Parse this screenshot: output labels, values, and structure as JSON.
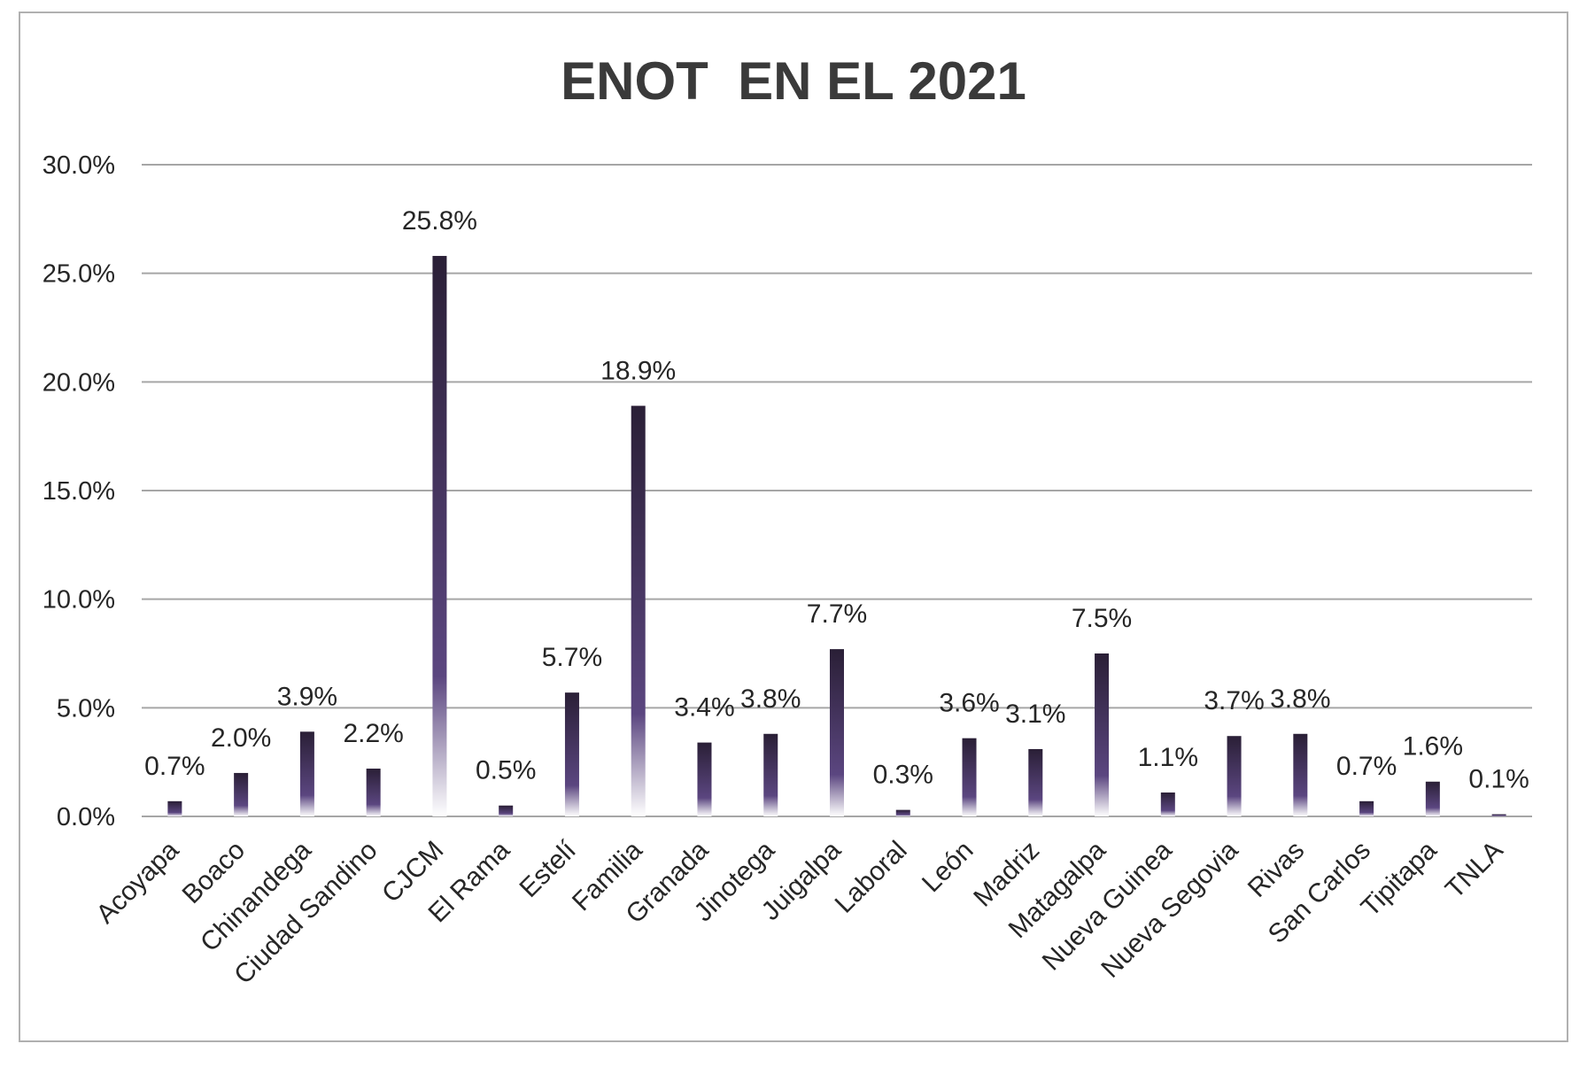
{
  "chart_data": {
    "type": "bar",
    "title": "ENOT  EN EL 2021",
    "xlabel": "",
    "ylabel": "",
    "ylim": [
      0,
      30
    ],
    "yticks": [
      "0.0%",
      "5.0%",
      "10.0%",
      "15.0%",
      "20.0%",
      "25.0%",
      "30.0%"
    ],
    "ytick_values": [
      0,
      5,
      10,
      15,
      20,
      25,
      30
    ],
    "grid": true,
    "legend": "none",
    "categories": [
      "Acoyapa",
      "Boaco",
      "Chinandega",
      "Ciudad Sandino",
      "CJCM",
      "El Rama",
      "Estelí",
      "Familia",
      "Granada",
      "Jinotega",
      "Juigalpa",
      "Laboral",
      "León",
      "Madriz",
      "Matagalpa",
      "Nueva Guinea",
      "Nueva Segovia",
      "Rivas",
      "San Carlos",
      "Tipitapa",
      "TNLA"
    ],
    "values": [
      0.7,
      2.0,
      3.9,
      2.2,
      25.8,
      0.5,
      5.7,
      18.9,
      3.4,
      3.8,
      7.7,
      0.3,
      3.6,
      3.1,
      7.5,
      1.1,
      3.7,
      3.8,
      0.7,
      1.6,
      0.1
    ],
    "data_labels": [
      "0.7%",
      "2.0%",
      "3.9%",
      "2.2%",
      "25.8%",
      "0.5%",
      "5.7%",
      "18.9%",
      "3.4%",
      "3.8%",
      "7.7%",
      "0.3%",
      "3.6%",
      "3.1%",
      "7.5%",
      "1.1%",
      "3.7%",
      "3.8%",
      "0.7%",
      "1.6%",
      "0.1%"
    ],
    "colors": {
      "bar_top": "#2a1f36",
      "bar_mid": "#5b4680",
      "bar_bottom": "#ffffff",
      "grid": "#a6a6a6",
      "text": "#262626",
      "title": "#3a3a3a",
      "frame": "#b0b0b0"
    }
  }
}
